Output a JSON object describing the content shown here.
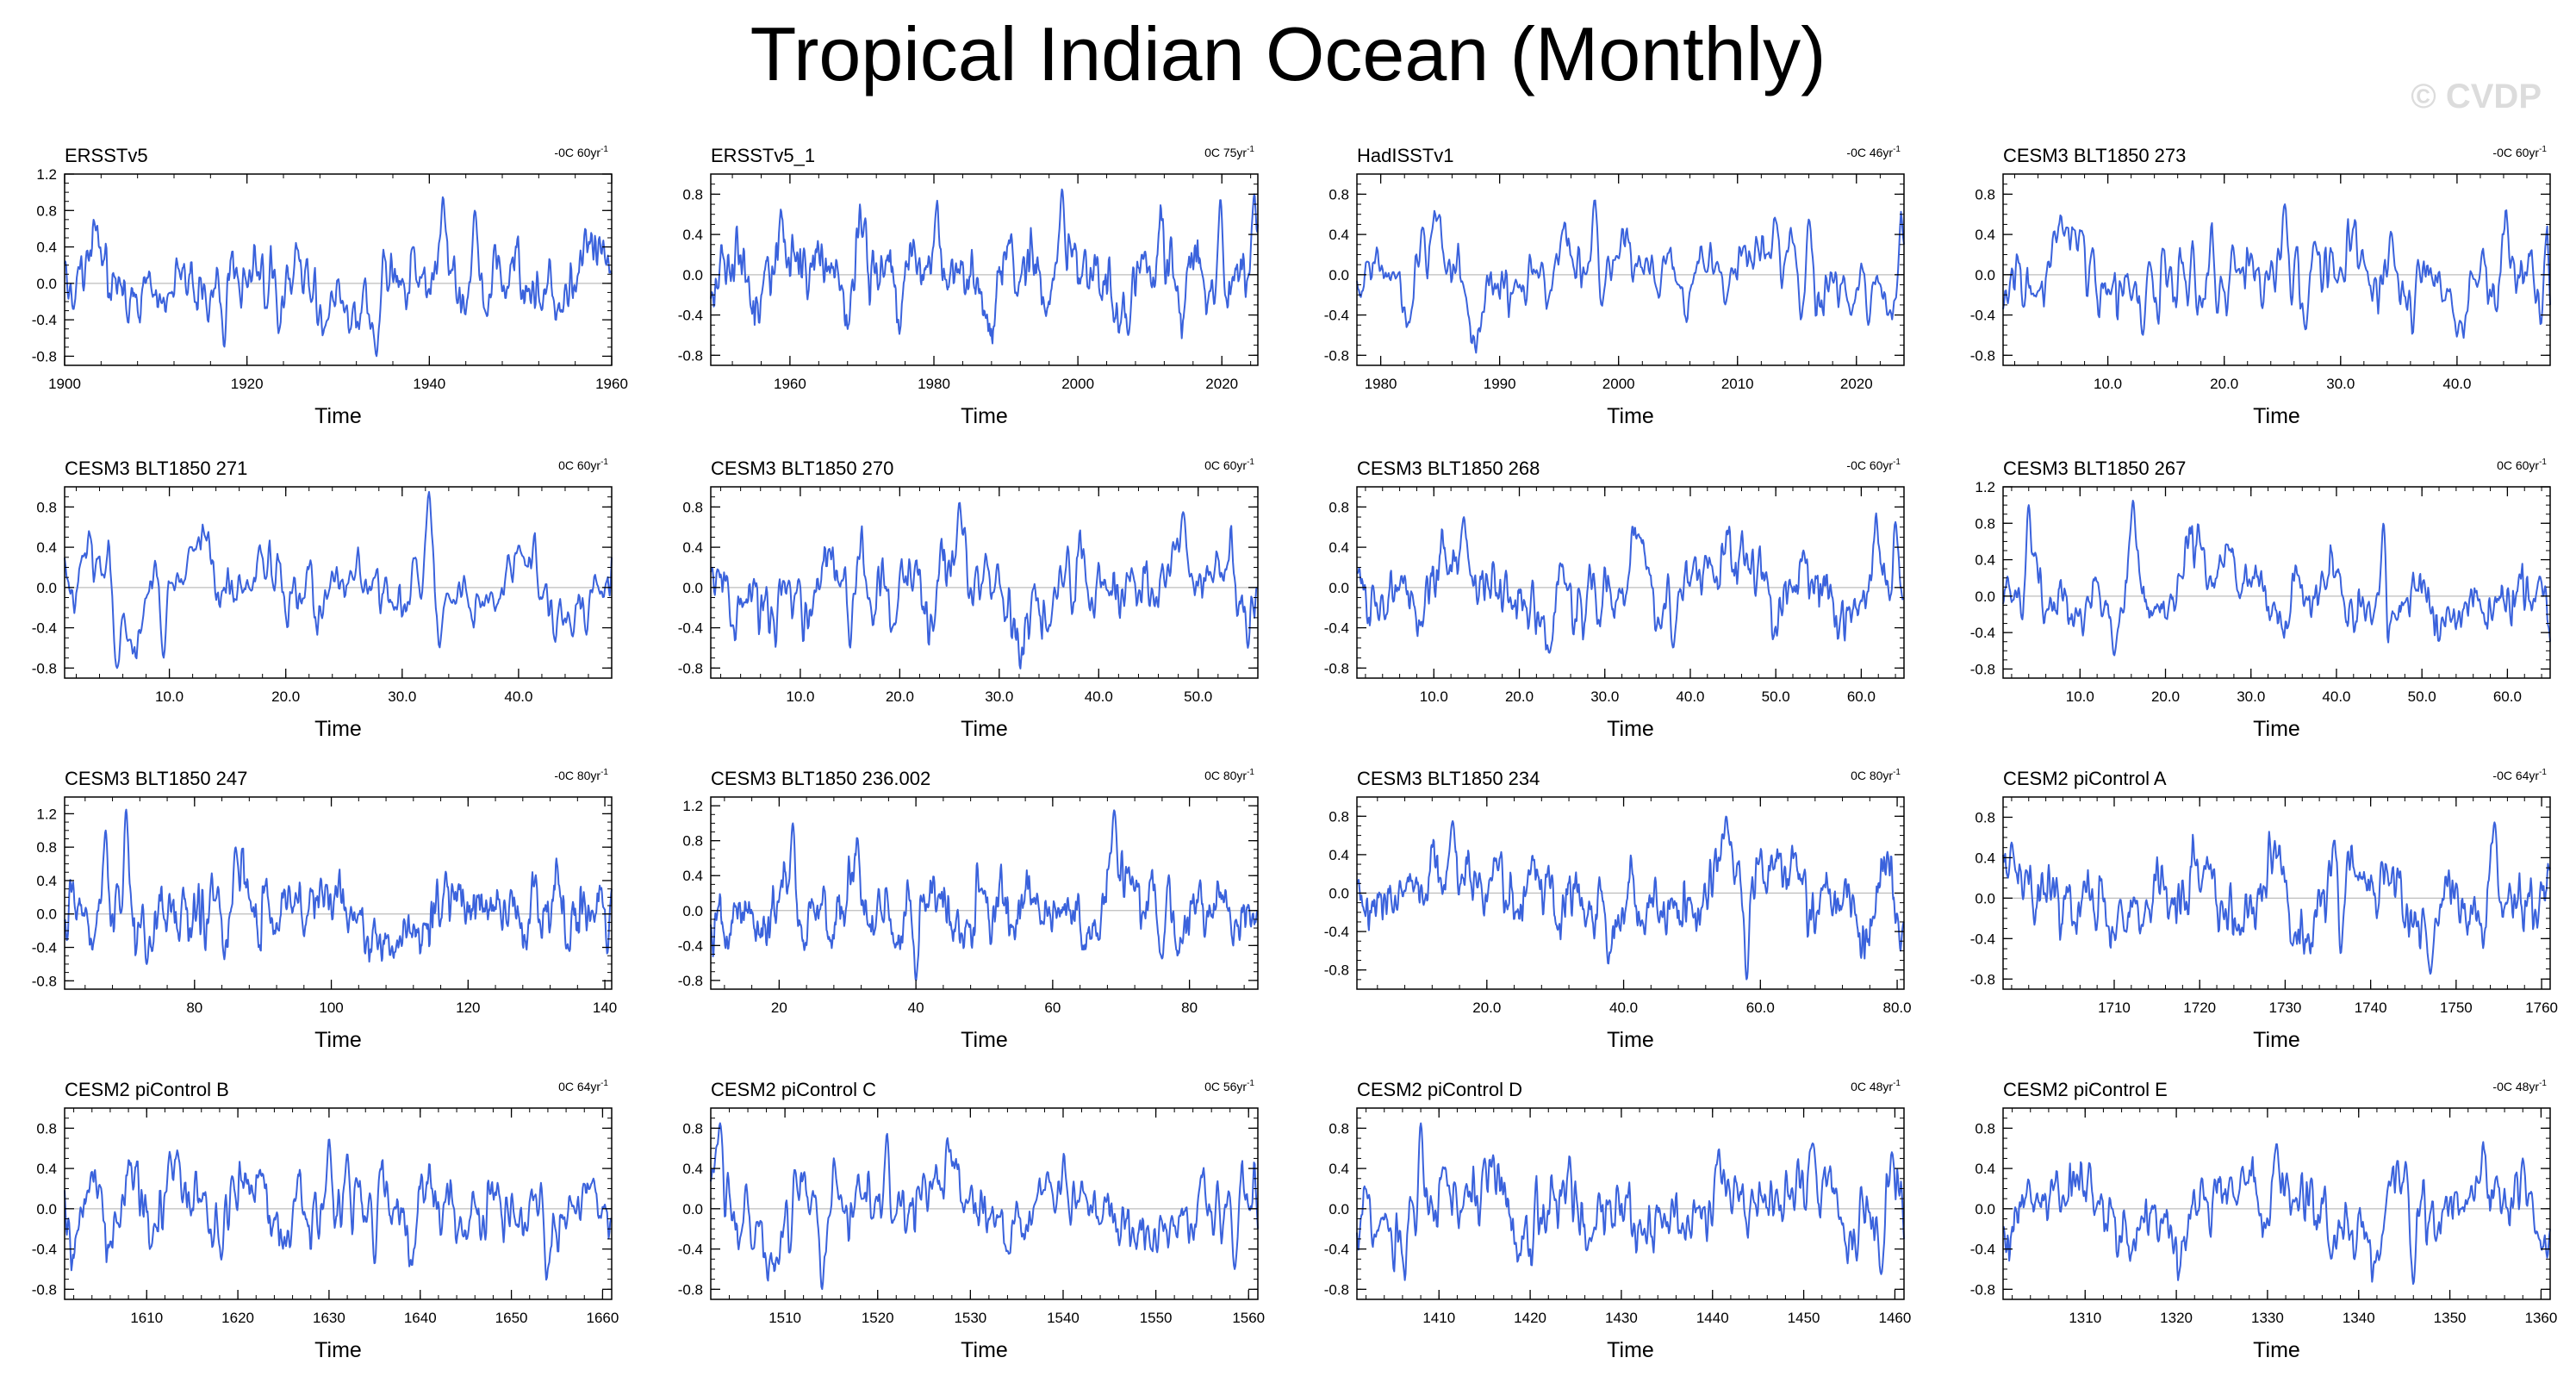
{
  "title": "Tropical Indian Ocean (Monthly)",
  "watermark": "© CVDP",
  "colors": {
    "series": "#3a62dc",
    "axis": "#000000",
    "zero_line": "#bdbdbd"
  },
  "chart_data": [
    {
      "type": "line",
      "panel": "ERSSTv5",
      "trend": "-0C 60yr",
      "xlabel": "Time",
      "xlim": [
        1900,
        1960
      ],
      "xticks": [
        1900,
        1920,
        1940,
        1960
      ],
      "xtick_labels": [
        "1900",
        "1920",
        "1940",
        "1960"
      ],
      "ylim": [
        -0.9,
        1.2
      ],
      "yticks": [
        -0.8,
        -0.4,
        0.0,
        0.4,
        0.8,
        1.2
      ],
      "ytick_labels": [
        "-0.8",
        "-0.4",
        "0.0",
        "0.4",
        "0.8",
        "1.2"
      ],
      "n": 720,
      "seed": 11,
      "peaks": [
        [
          1934.2,
          -0.8
        ],
        [
          1941.5,
          0.95
        ],
        [
          1945,
          0.8
        ],
        [
          1917.5,
          -0.7
        ]
      ],
      "end_value": 0.1
    },
    {
      "type": "line",
      "panel": "ERSSTv5_1",
      "trend": "0C 75yr",
      "xlabel": "Time",
      "xlim": [
        1949,
        2025
      ],
      "xticks": [
        1960,
        1980,
        2000,
        2020
      ],
      "xtick_labels": [
        "1960",
        "1980",
        "2000",
        "2020"
      ],
      "ylim": [
        -0.9,
        1.0
      ],
      "yticks": [
        -0.8,
        -0.4,
        0.0,
        0.4,
        0.8
      ],
      "ytick_labels": [
        "-0.8",
        "-0.4",
        "0.0",
        "0.4",
        "0.8"
      ],
      "n": 900,
      "seed": 23,
      "peaks": [
        [
          1997.8,
          0.85
        ],
        [
          2019.8,
          0.75
        ],
        [
          2024.5,
          0.8
        ],
        [
          2007,
          -0.6
        ]
      ],
      "end_value": 0.5
    },
    {
      "type": "line",
      "panel": "HadISSTv1",
      "trend": "-0C 46yr",
      "xlabel": "Time",
      "xlim": [
        1978,
        2024
      ],
      "xticks": [
        1980,
        1990,
        2000,
        2010,
        2020
      ],
      "xtick_labels": [
        "1980",
        "1990",
        "2000",
        "2010",
        "2020"
      ],
      "ylim": [
        -0.9,
        1.0
      ],
      "yticks": [
        -0.8,
        -0.4,
        0.0,
        0.4,
        0.8
      ],
      "ytick_labels": [
        "-0.8",
        "-0.4",
        "0.0",
        "0.4",
        "0.8"
      ],
      "n": 552,
      "seed": 37,
      "peaks": [
        [
          1998,
          0.75
        ],
        [
          2016,
          0.55
        ],
        [
          2023.8,
          0.65
        ],
        [
          2021,
          -0.5
        ]
      ],
      "end_value": 0.3
    },
    {
      "type": "line",
      "panel": "CESM3 BLT1850 273",
      "trend": "-0C 60yr",
      "xlabel": "Time",
      "xlim": [
        1,
        48
      ],
      "xticks": [
        10,
        20,
        30,
        40
      ],
      "xtick_labels": [
        "10.0",
        "20.0",
        "30.0",
        "40.0"
      ],
      "ylim": [
        -0.9,
        1.0
      ],
      "yticks": [
        -0.8,
        -0.4,
        0.0,
        0.4,
        0.8
      ],
      "ytick_labels": [
        "-0.8",
        "-0.4",
        "0.0",
        "0.4",
        "0.8"
      ],
      "n": 564,
      "seed": 41,
      "peaks": [
        [
          25.2,
          0.7
        ],
        [
          13,
          -0.6
        ],
        [
          27,
          -0.55
        ],
        [
          47.2,
          -0.5
        ]
      ],
      "end_value": -0.3
    },
    {
      "type": "line",
      "panel": "CESM3 BLT1850 271",
      "trend": "0C 60yr",
      "xlabel": "Time",
      "xlim": [
        1,
        48
      ],
      "xticks": [
        10,
        20,
        30,
        40
      ],
      "xtick_labels": [
        "10.0",
        "20.0",
        "30.0",
        "40.0"
      ],
      "ylim": [
        -0.9,
        1.0
      ],
      "yticks": [
        -0.8,
        -0.4,
        0.0,
        0.4,
        0.8
      ],
      "ytick_labels": [
        "-0.8",
        "-0.4",
        "0.0",
        "0.4",
        "0.8"
      ],
      "n": 564,
      "seed": 53,
      "peaks": [
        [
          32.3,
          0.95
        ],
        [
          5.5,
          -0.8
        ],
        [
          33.2,
          -0.6
        ],
        [
          9.5,
          -0.7
        ]
      ],
      "end_value": 0.3
    },
    {
      "type": "line",
      "panel": "CESM3 BLT1850 270",
      "trend": "0C 60yr",
      "xlabel": "Time",
      "xlim": [
        1,
        56
      ],
      "xticks": [
        10,
        20,
        30,
        40,
        50
      ],
      "xtick_labels": [
        "10.0",
        "20.0",
        "30.0",
        "40.0",
        "50.0"
      ],
      "ylim": [
        -0.9,
        1.0
      ],
      "yticks": [
        -0.8,
        -0.4,
        0.0,
        0.4,
        0.8
      ],
      "ytick_labels": [
        "-0.8",
        "-0.4",
        "0.0",
        "0.4",
        "0.8"
      ],
      "n": 660,
      "seed": 67,
      "peaks": [
        [
          26,
          0.85
        ],
        [
          48.5,
          0.75
        ],
        [
          15,
          -0.6
        ],
        [
          55,
          -0.6
        ]
      ],
      "end_value": 0.0
    },
    {
      "type": "line",
      "panel": "CESM3 BLT1850 268",
      "trend": "-0C 60yr",
      "xlabel": "Time",
      "xlim": [
        1,
        65
      ],
      "xticks": [
        10,
        20,
        30,
        40,
        50,
        60
      ],
      "xtick_labels": [
        "10.0",
        "20.0",
        "30.0",
        "40.0",
        "50.0",
        "60.0"
      ],
      "ylim": [
        -0.9,
        1.0
      ],
      "yticks": [
        -0.8,
        -0.4,
        0.0,
        0.4,
        0.8
      ],
      "ytick_labels": [
        "-0.8",
        "-0.4",
        "0.0",
        "0.4",
        "0.8"
      ],
      "n": 768,
      "seed": 71,
      "peaks": [
        [
          13.5,
          0.7
        ],
        [
          64,
          0.65
        ],
        [
          23.5,
          -0.65
        ],
        [
          38,
          -0.6
        ]
      ],
      "end_value": -0.1
    },
    {
      "type": "line",
      "panel": "CESM3 BLT1850 267",
      "trend": "0C 60yr",
      "xlabel": "Time",
      "xlim": [
        1,
        65
      ],
      "xticks": [
        10,
        20,
        30,
        40,
        50,
        60
      ],
      "xtick_labels": [
        "10.0",
        "20.0",
        "30.0",
        "40.0",
        "50.0",
        "60.0"
      ],
      "ylim": [
        -0.9,
        1.2
      ],
      "yticks": [
        -0.8,
        -0.4,
        0.0,
        0.4,
        0.8,
        1.2
      ],
      "ytick_labels": [
        "-0.8",
        "-0.4",
        "0.0",
        "0.4",
        "0.8",
        "1.2"
      ],
      "n": 768,
      "seed": 83,
      "peaks": [
        [
          4,
          1.0
        ],
        [
          16.2,
          1.05
        ],
        [
          45.5,
          0.8
        ],
        [
          14,
          -0.65
        ]
      ],
      "end_value": -0.5
    },
    {
      "type": "line",
      "panel": "CESM3 BLT1850 247",
      "trend": "-0C 80yr",
      "xlabel": "Time",
      "xlim": [
        61,
        141
      ],
      "xticks": [
        80,
        100,
        120,
        140
      ],
      "xtick_labels": [
        "80",
        "100",
        "120",
        "140"
      ],
      "ylim": [
        -0.9,
        1.4
      ],
      "yticks": [
        -0.8,
        -0.4,
        0.0,
        0.4,
        0.8,
        1.2
      ],
      "ytick_labels": [
        "-0.8",
        "-0.4",
        "0.0",
        "0.4",
        "0.8",
        "1.2"
      ],
      "n": 960,
      "seed": 97,
      "peaks": [
        [
          70,
          1.25
        ],
        [
          67,
          1.0
        ],
        [
          86,
          0.8
        ],
        [
          73,
          -0.6
        ]
      ],
      "end_value": 0.3
    },
    {
      "type": "line",
      "panel": "CESM3 BLT1850 236.002",
      "trend": "0C 80yr",
      "xlabel": "Time",
      "xlim": [
        10,
        90
      ],
      "xticks": [
        20,
        40,
        60,
        80
      ],
      "xtick_labels": [
        "20",
        "40",
        "60",
        "80"
      ],
      "ylim": [
        -0.9,
        1.3
      ],
      "yticks": [
        -0.8,
        -0.4,
        0.0,
        0.4,
        0.8,
        1.2
      ],
      "ytick_labels": [
        "-0.8",
        "-0.4",
        "0.0",
        "0.4",
        "0.8",
        "1.2"
      ],
      "n": 960,
      "seed": 101,
      "peaks": [
        [
          69,
          1.15
        ],
        [
          22,
          1.0
        ],
        [
          40,
          -0.8
        ],
        [
          76,
          -0.55
        ]
      ],
      "end_value": 0.0
    },
    {
      "type": "line",
      "panel": "CESM3 BLT1850 234",
      "trend": "0C 80yr",
      "xlabel": "Time",
      "xlim": [
        1,
        81
      ],
      "xticks": [
        20,
        40,
        60,
        80
      ],
      "xtick_labels": [
        "20.0",
        "40.0",
        "60.0",
        "80.0"
      ],
      "ylim": [
        -1.0,
        1.0
      ],
      "yticks": [
        -0.8,
        -0.4,
        0.0,
        0.4,
        0.8
      ],
      "ytick_labels": [
        "-0.8",
        "-0.4",
        "0.0",
        "0.4",
        "0.8"
      ],
      "n": 960,
      "seed": 113,
      "peaks": [
        [
          55,
          0.8
        ],
        [
          58,
          -0.9
        ],
        [
          15,
          0.75
        ],
        [
          80.5,
          -0.6
        ]
      ],
      "end_value": -0.3
    },
    {
      "type": "line",
      "panel": "CESM2 piControl A",
      "trend": "-0C 64yr",
      "xlabel": "Time",
      "xlim": [
        1697,
        1761
      ],
      "xticks": [
        1710,
        1720,
        1730,
        1740,
        1750,
        1760
      ],
      "xtick_labels": [
        "1710",
        "1720",
        "1730",
        "1740",
        "1750",
        "1760"
      ],
      "ylim": [
        -0.9,
        1.0
      ],
      "yticks": [
        -0.8,
        -0.4,
        0.0,
        0.4,
        0.8
      ],
      "ytick_labels": [
        "-0.8",
        "-0.4",
        "0.0",
        "0.4",
        "0.8"
      ],
      "n": 768,
      "seed": 127,
      "peaks": [
        [
          1754.5,
          0.75
        ],
        [
          1747,
          -0.75
        ],
        [
          1698,
          0.55
        ],
        [
          1736.5,
          -0.55
        ]
      ],
      "end_value": 0.3
    },
    {
      "type": "line",
      "panel": "CESM2 piControl B",
      "trend": "0C 64yr",
      "xlabel": "Time",
      "xlim": [
        1601,
        1661
      ],
      "xticks": [
        1610,
        1620,
        1630,
        1640,
        1650,
        1660
      ],
      "xtick_labels": [
        "1610",
        "1620",
        "1630",
        "1640",
        "1650",
        "1660"
      ],
      "ylim": [
        -0.9,
        1.0
      ],
      "yticks": [
        -0.8,
        -0.4,
        0.0,
        0.4,
        0.8
      ],
      "ytick_labels": [
        "-0.8",
        "-0.4",
        "0.0",
        "0.4",
        "0.8"
      ],
      "n": 720,
      "seed": 131,
      "peaks": [
        [
          1630,
          0.7
        ],
        [
          1632,
          0.55
        ],
        [
          1635,
          -0.55
        ],
        [
          1659,
          0.3
        ]
      ],
      "end_value": -0.1
    },
    {
      "type": "line",
      "panel": "CESM2 piControl C",
      "trend": "0C 56yr",
      "xlabel": "Time",
      "xlim": [
        1502,
        1561
      ],
      "xticks": [
        1510,
        1520,
        1530,
        1540,
        1550,
        1560
      ],
      "xtick_labels": [
        "1510",
        "1520",
        "1530",
        "1540",
        "1550",
        "1560"
      ],
      "ylim": [
        -0.9,
        1.0
      ],
      "yticks": [
        -0.8,
        -0.4,
        0.0,
        0.4,
        0.8
      ],
      "ytick_labels": [
        "-0.8",
        "-0.4",
        "0.0",
        "0.4",
        "0.8"
      ],
      "n": 708,
      "seed": 137,
      "peaks": [
        [
          1503,
          0.85
        ],
        [
          1514,
          -0.8
        ],
        [
          1521,
          0.75
        ],
        [
          1558.5,
          -0.6
        ]
      ],
      "end_value": -0.2
    },
    {
      "type": "line",
      "panel": "CESM2 piControl D",
      "trend": "0C 48yr",
      "xlabel": "Time",
      "xlim": [
        1401,
        1461
      ],
      "xticks": [
        1410,
        1420,
        1430,
        1440,
        1450,
        1460
      ],
      "xtick_labels": [
        "1410",
        "1420",
        "1430",
        "1440",
        "1450",
        "1460"
      ],
      "ylim": [
        -0.9,
        1.0
      ],
      "yticks": [
        -0.8,
        -0.4,
        0.0,
        0.4,
        0.8
      ],
      "ytick_labels": [
        "-0.8",
        "-0.4",
        "0.0",
        "0.4",
        "0.8"
      ],
      "n": 720,
      "seed": 149,
      "peaks": [
        [
          1408,
          0.85
        ],
        [
          1451,
          0.65
        ],
        [
          1458.5,
          -0.65
        ],
        [
          1415,
          0.5
        ]
      ],
      "end_value": -0.3
    },
    {
      "type": "line",
      "panel": "CESM2 piControl E",
      "trend": "-0C 48yr",
      "xlabel": "Time",
      "xlim": [
        1301,
        1361
      ],
      "xticks": [
        1310,
        1320,
        1330,
        1340,
        1350,
        1360
      ],
      "xtick_labels": [
        "1310",
        "1320",
        "1330",
        "1340",
        "1350",
        "1360"
      ],
      "ylim": [
        -0.9,
        1.0
      ],
      "yticks": [
        -0.8,
        -0.4,
        0.0,
        0.4,
        0.8
      ],
      "ytick_labels": [
        "-0.8",
        "-0.4",
        "0.0",
        "0.4",
        "0.8"
      ],
      "n": 720,
      "seed": 151,
      "peaks": [
        [
          1331,
          0.65
        ],
        [
          1346,
          -0.75
        ],
        [
          1358,
          0.5
        ],
        [
          1337,
          -0.5
        ]
      ],
      "end_value": -0.2
    }
  ]
}
